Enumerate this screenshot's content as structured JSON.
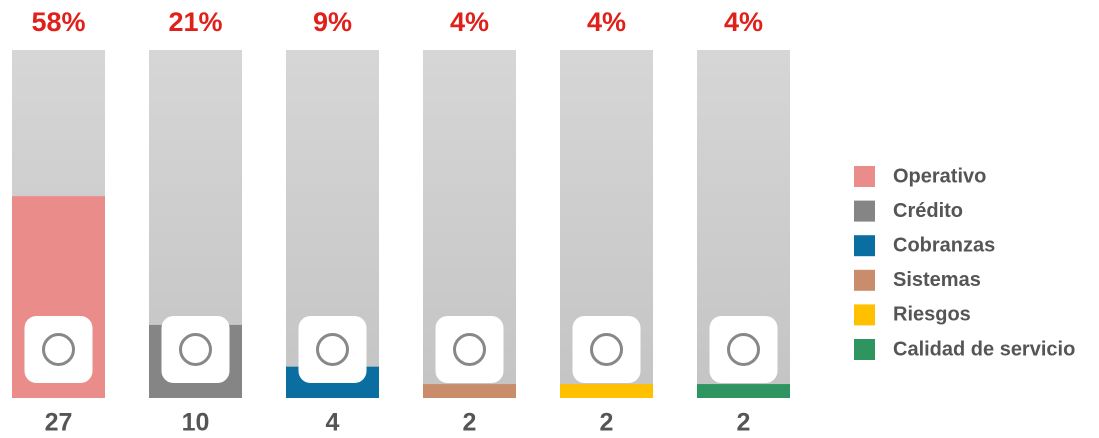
{
  "chart_data": {
    "type": "bar",
    "categories": [
      "Operativo",
      "Crédito",
      "Cobranzas",
      "Sistemas",
      "Riesgos",
      "Calidad de servicio"
    ],
    "colors": [
      "#e98c8a",
      "#858585",
      "#0a6fa0",
      "#c98d6c",
      "#ffc000",
      "#2e9460"
    ],
    "values": [
      58,
      21,
      9,
      4,
      4,
      4
    ],
    "value_labels": [
      "58%",
      "21%",
      "9%",
      "4%",
      "4%",
      "4%"
    ],
    "counts": [
      27,
      10,
      4,
      2,
      2,
      2
    ],
    "ylim": [
      0,
      100
    ]
  }
}
